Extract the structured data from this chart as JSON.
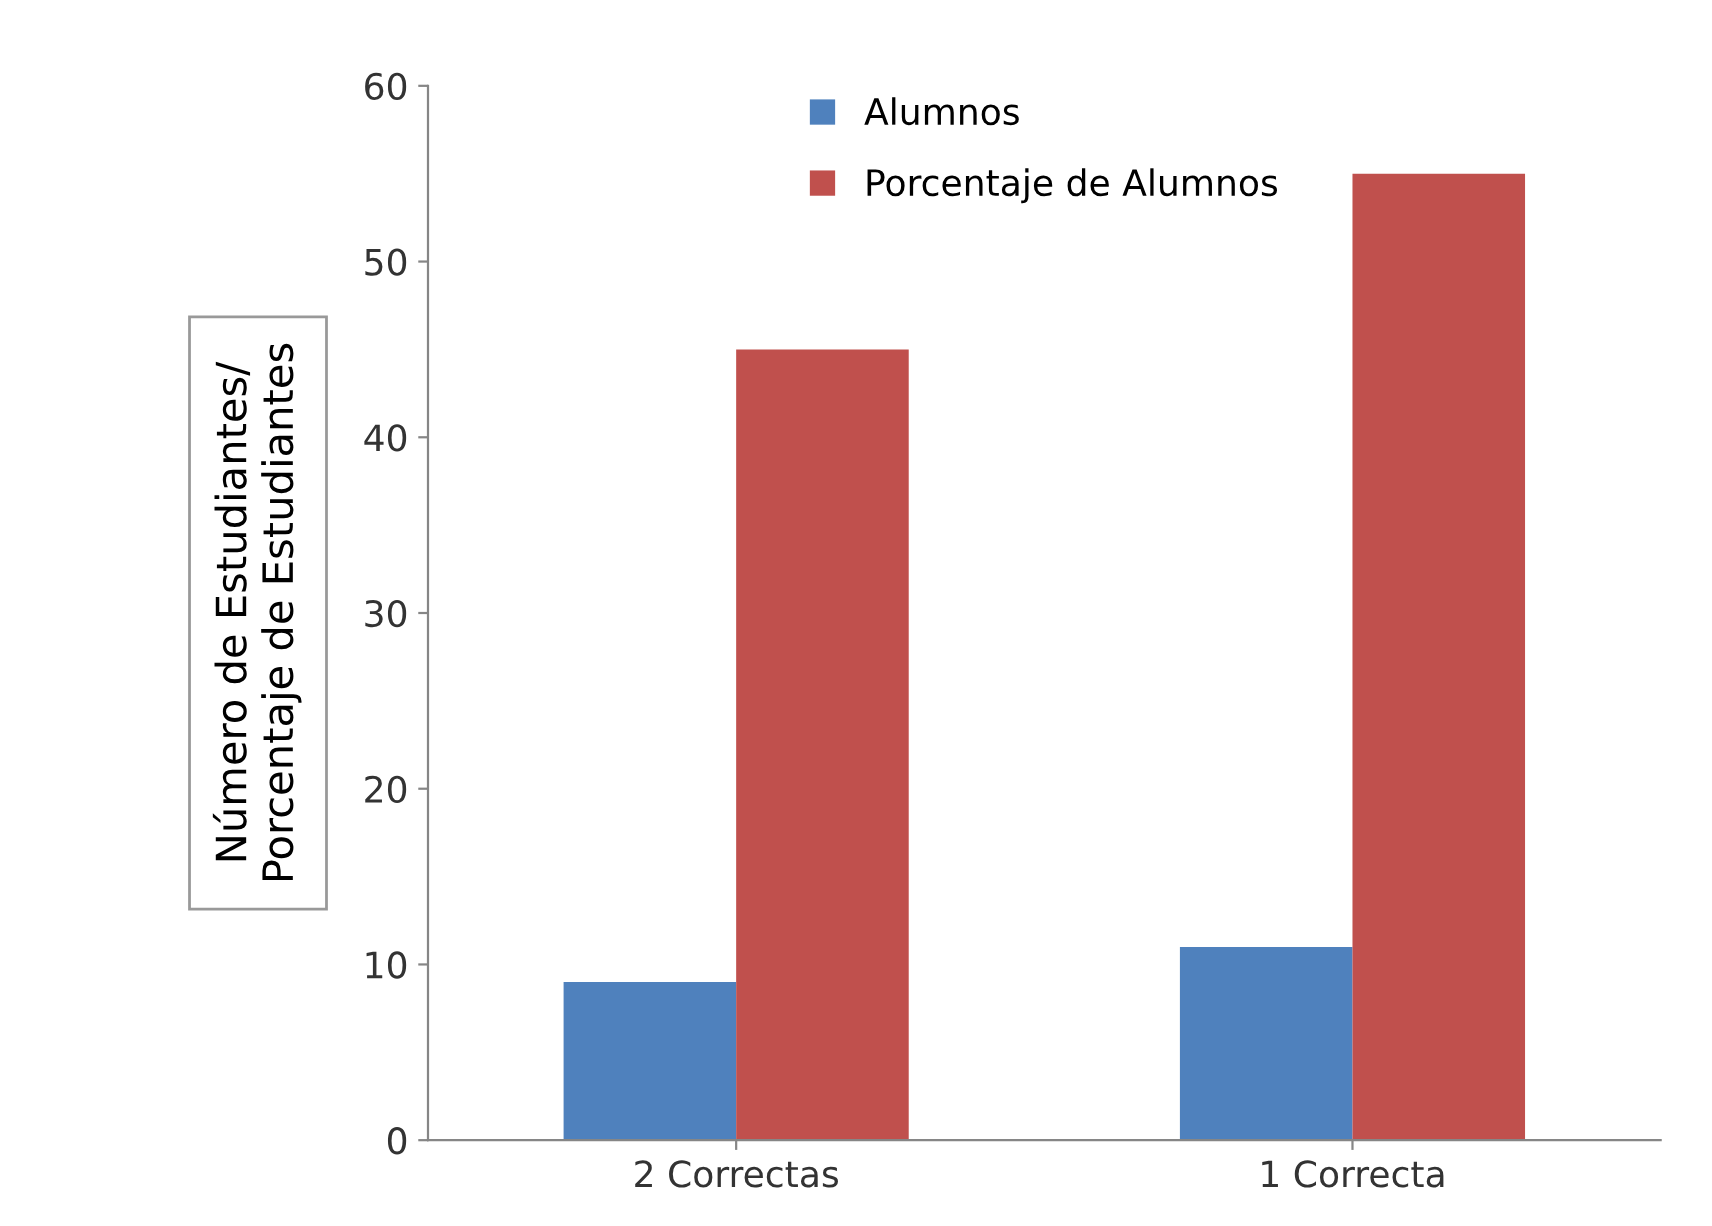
{
  "chart_data": {
    "type": "bar",
    "ylabel": "Número de Estudiantes/\nPorcentaje de Estudiantes",
    "categories": [
      "2 Correctas",
      "1 Correcta"
    ],
    "series": [
      {
        "name": "Alumnos",
        "color": "#4f81bd",
        "values": [
          9,
          11
        ]
      },
      {
        "name": "Porcentaje de Alumnos",
        "color": "#c0504d",
        "values": [
          45,
          55
        ]
      }
    ],
    "ylim": [
      0,
      60
    ],
    "yticks": [
      0,
      10,
      20,
      30,
      40,
      50,
      60
    ],
    "grid": false,
    "legend": "top"
  }
}
